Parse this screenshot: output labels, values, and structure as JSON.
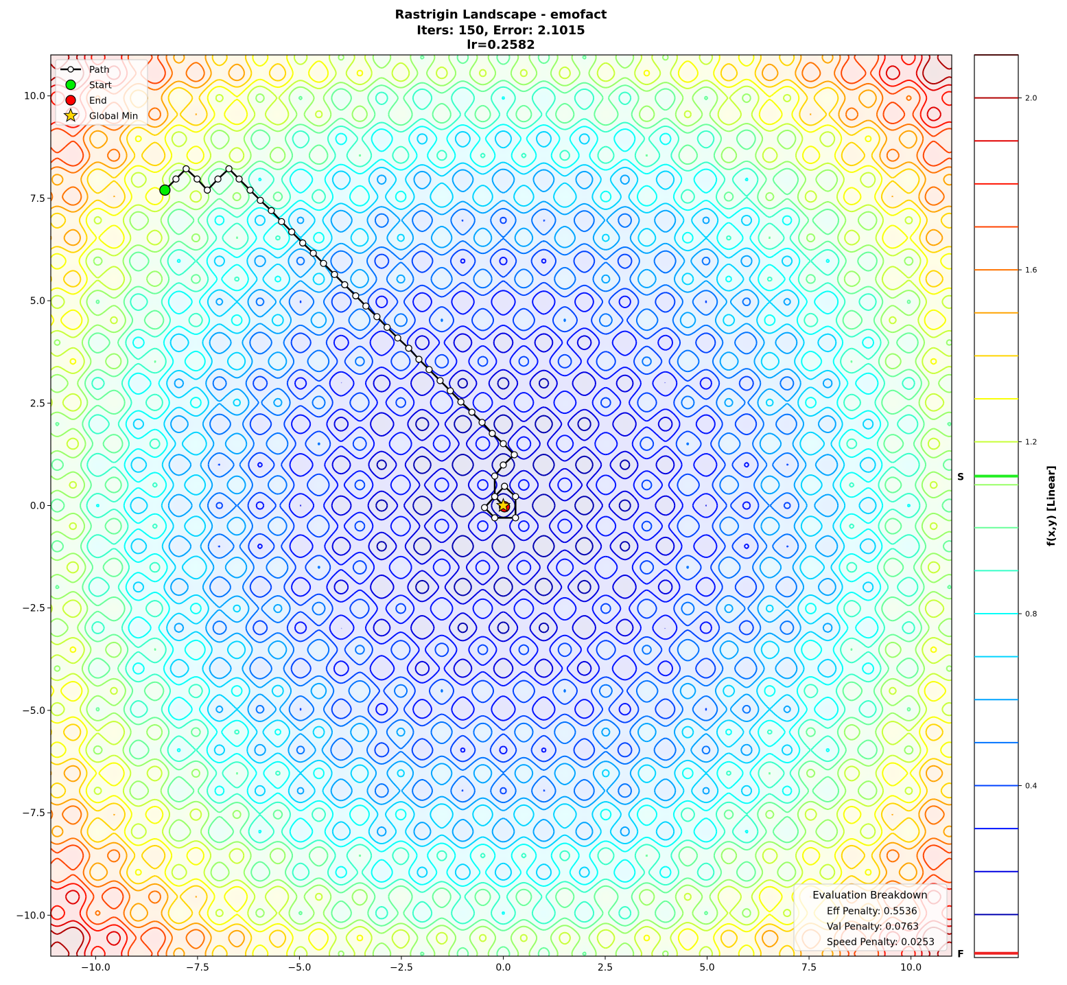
{
  "chart_data": {
    "type": "contour",
    "function": "rastrigin",
    "title": [
      "Rastrigin Landscape - emofact",
      "Iters: 150, Error: 2.1015",
      "lr=0.2582"
    ],
    "xlim": [
      -11.1,
      11.0
    ],
    "ylim": [
      -11.0,
      11.0
    ],
    "xticks": [
      -10,
      -7.5,
      -5,
      -2.5,
      0,
      2.5,
      5,
      7.5,
      10
    ],
    "xtick_labels": [
      "−10.0",
      "−7.5",
      "−5.0",
      "−2.5",
      "0.0",
      "2.5",
      "5.0",
      "7.5",
      "10.0"
    ],
    "yticks": [
      -10,
      -7.5,
      -5,
      -2.5,
      0,
      2.5,
      5,
      7.5,
      10
    ],
    "ytick_labels": [
      "−10.0",
      "−7.5",
      "−5.0",
      "−2.5",
      "0.0",
      "2.5",
      "5.0",
      "7.5",
      "10.0"
    ],
    "grid": false,
    "colormap": "jet",
    "colorbar": {
      "label": "f(x,y) [Linear]",
      "range": [
        0.0,
        2.1
      ],
      "ticks": [
        0.4,
        0.8,
        1.2,
        1.6,
        2.0
      ],
      "tick_labels": [
        "0.4",
        "0.8",
        "1.2",
        "1.6",
        "2.0"
      ],
      "levels": [
        0.1,
        0.2,
        0.3,
        0.4,
        0.5,
        0.6,
        0.7,
        0.8,
        0.9,
        1.0,
        1.1,
        1.2,
        1.3,
        1.4,
        1.5,
        1.6,
        1.7,
        1.8,
        1.9,
        2.0,
        2.1
      ],
      "markers": [
        {
          "label": "S",
          "value": 1.12,
          "color": "#22ee22"
        },
        {
          "label": "F",
          "value": 0.01,
          "color": "#ee2222"
        }
      ]
    },
    "path": {
      "x": [
        -8.3,
        -8.03,
        -7.78,
        -7.51,
        -7.26,
        -7.0,
        -6.73,
        -6.48,
        -6.21,
        -5.96,
        -5.69,
        -5.44,
        -5.19,
        -4.92,
        -4.66,
        -4.41,
        -4.14,
        -3.89,
        -3.62,
        -3.37,
        -3.1,
        -2.85,
        -2.59,
        -2.32,
        -2.07,
        -1.82,
        -1.55,
        -1.3,
        -1.04,
        -0.77,
        -0.52,
        -0.27,
        0.0,
        0.27,
        0.0,
        -0.21,
        -0.21,
        0.03,
        0.3,
        0.3,
        -0.21,
        -0.46,
        -0.21,
        0.03
      ],
      "y": [
        7.7,
        7.97,
        8.22,
        7.97,
        7.7,
        7.97,
        8.22,
        7.97,
        7.7,
        7.45,
        7.2,
        6.93,
        6.68,
        6.41,
        6.16,
        5.91,
        5.64,
        5.39,
        5.12,
        4.87,
        4.61,
        4.35,
        4.09,
        3.84,
        3.57,
        3.32,
        3.05,
        2.8,
        2.53,
        2.28,
        2.03,
        1.76,
        1.51,
        1.24,
        0.99,
        0.72,
        0.22,
        0.47,
        0.22,
        -0.3,
        -0.3,
        -0.05,
        0.22,
        -0.03
      ]
    },
    "start": [
      -8.3,
      7.7
    ],
    "end": [
      0.03,
      -0.03
    ],
    "global_min": [
      0,
      0
    ],
    "legend": {
      "placement": "top-left",
      "entries": [
        {
          "label": "Path",
          "marker": "line-circle",
          "color": "#000000"
        },
        {
          "label": "Start",
          "marker": "circle",
          "color": "#00ee00"
        },
        {
          "label": "End",
          "marker": "circle",
          "color": "#ff0000"
        },
        {
          "label": "Global Min",
          "marker": "star",
          "color": "#ffd700"
        }
      ]
    },
    "annotation": {
      "title": "Evaluation Breakdown",
      "lines": [
        "Eff Penalty: 0.5536",
        "Val Penalty: 0.0763",
        "Speed Penalty: 0.0253"
      ],
      "placement": "bottom-right"
    }
  }
}
